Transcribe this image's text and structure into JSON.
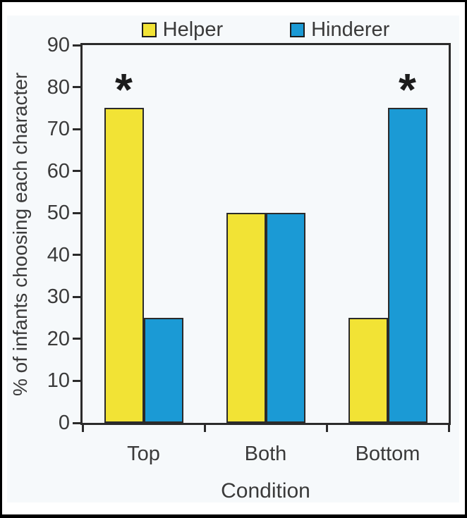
{
  "figure": {
    "background": "#f6f9fb",
    "frame_color": "#2b2b2b",
    "text_color": "#3a3a3a"
  },
  "chart_data": {
    "type": "bar",
    "title": "",
    "categories": [
      "Top",
      "Both",
      "Bottom"
    ],
    "series": [
      {
        "name": "Helper",
        "color": "#f2e335",
        "values": [
          75,
          50,
          25
        ]
      },
      {
        "name": "Hinderer",
        "color": "#1b9ad5",
        "values": [
          25,
          50,
          75
        ]
      }
    ],
    "xlabel": "Condition",
    "ylabel": "% of infants choosing each character",
    "ylim": [
      0,
      90
    ],
    "yticks": [
      0,
      10,
      20,
      30,
      40,
      50,
      60,
      70,
      80,
      90
    ],
    "grid": false,
    "legend_position": "top",
    "annotations": [
      {
        "category": "Top",
        "series": "Helper",
        "symbol": "*"
      },
      {
        "category": "Bottom",
        "series": "Hinderer",
        "symbol": "*"
      }
    ]
  }
}
